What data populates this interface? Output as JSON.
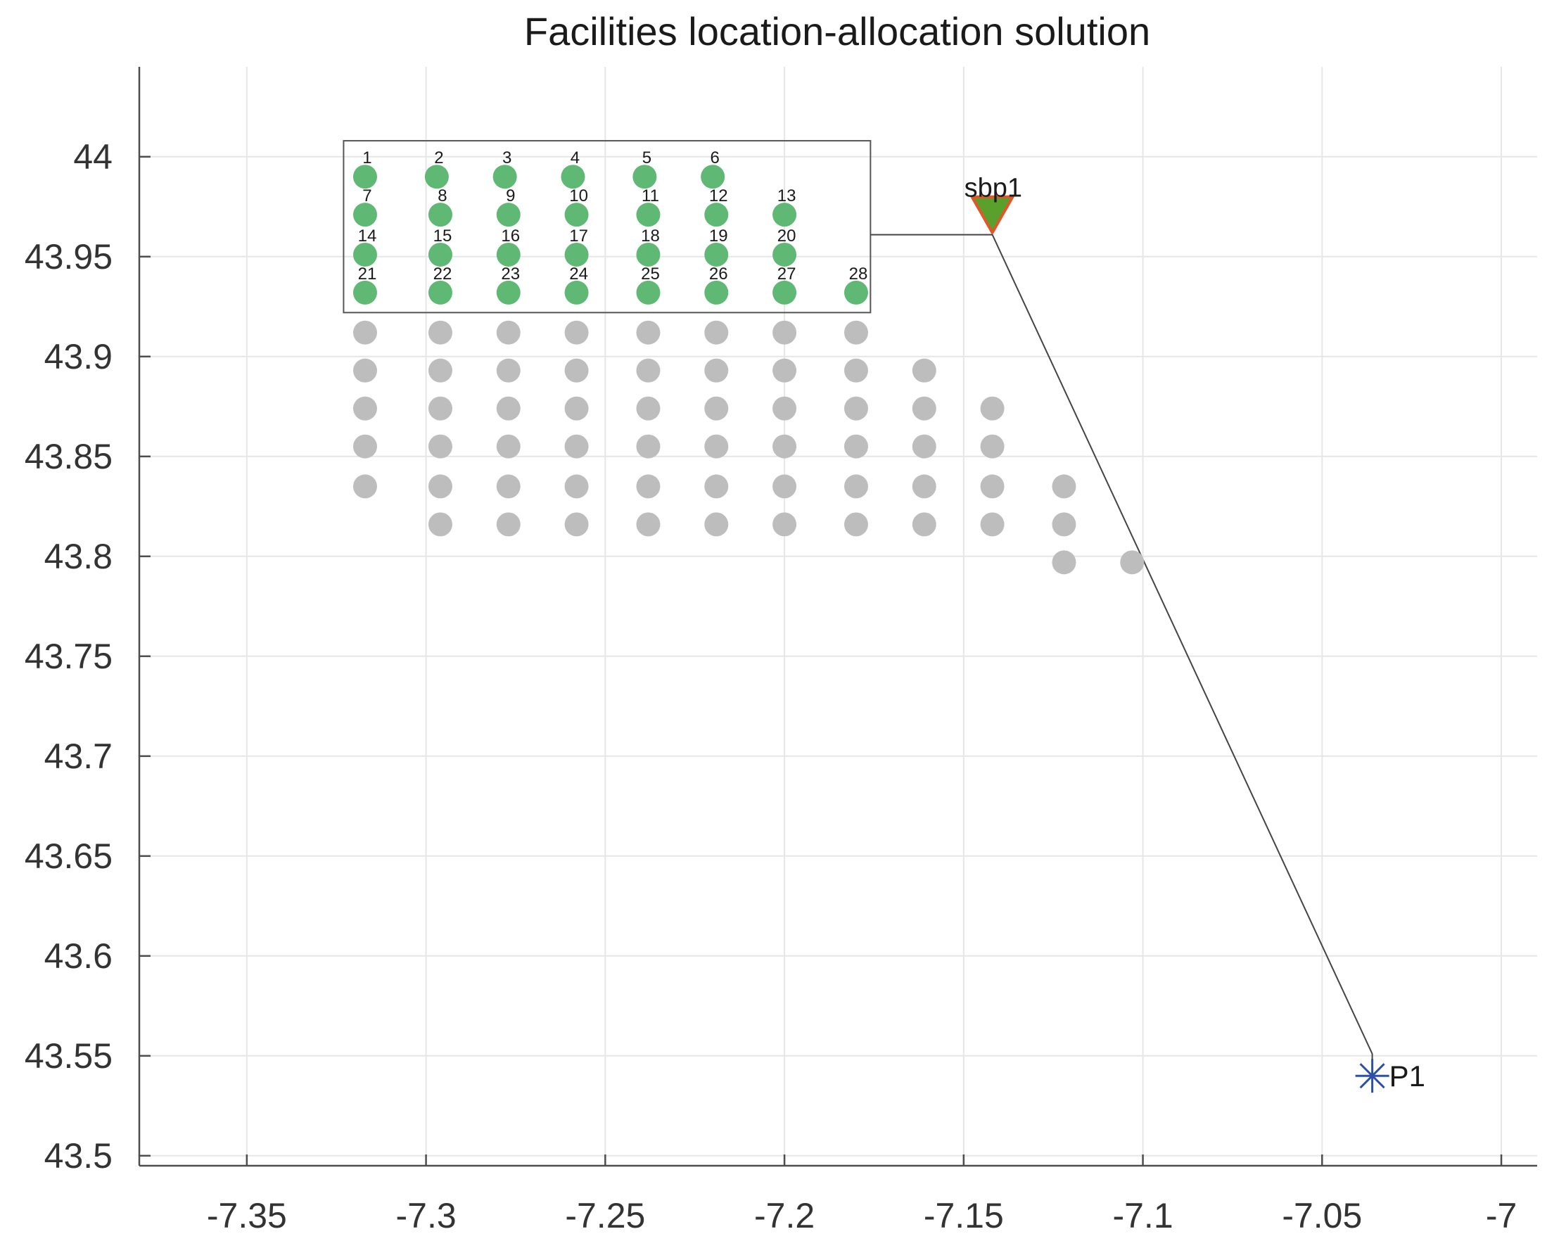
{
  "chart_data": {
    "type": "scatter",
    "title": "Facilities location-allocation solution",
    "xlabel": "",
    "ylabel": "",
    "xlim": [
      -7.38,
      -6.99
    ],
    "ylim": [
      43.495,
      44.045
    ],
    "grid": true,
    "x_ticks": [
      {
        "value": -7.35,
        "label": "-7.35"
      },
      {
        "value": -7.3,
        "label": "-7.3"
      },
      {
        "value": -7.25,
        "label": "-7.25"
      },
      {
        "value": -7.2,
        "label": "-7.2"
      },
      {
        "value": -7.15,
        "label": "-7.15"
      },
      {
        "value": -7.1,
        "label": "-7.1"
      },
      {
        "value": -7.05,
        "label": "-7.05"
      },
      {
        "value": -7.0,
        "label": "-7"
      }
    ],
    "y_ticks": [
      {
        "value": 43.5,
        "label": "43.5"
      },
      {
        "value": 43.55,
        "label": "43.55"
      },
      {
        "value": 43.6,
        "label": "43.6"
      },
      {
        "value": 43.65,
        "label": "43.65"
      },
      {
        "value": 43.7,
        "label": "43.7"
      },
      {
        "value": 43.75,
        "label": "43.75"
      },
      {
        "value": 43.8,
        "label": "43.8"
      },
      {
        "value": 43.85,
        "label": "43.85"
      },
      {
        "value": 43.9,
        "label": "43.9"
      },
      {
        "value": 43.95,
        "label": "43.95"
      },
      {
        "value": 44.0,
        "label": "44"
      }
    ],
    "colors": {
      "assigned": "#5fb874",
      "unassigned": "#bdbdbd",
      "facility_fill": "#5aa02c",
      "facility_edge": "#e2572a",
      "point_marker": "#2e4fa8",
      "line": "#444444",
      "grid": "#e6e6e6",
      "axis": "#4d4d4d"
    },
    "assigned_points": [
      {
        "label": "1",
        "x": -7.317,
        "y": 43.99
      },
      {
        "label": "2",
        "x": -7.297,
        "y": 43.99
      },
      {
        "label": "3",
        "x": -7.278,
        "y": 43.99
      },
      {
        "label": "4",
        "x": -7.259,
        "y": 43.99
      },
      {
        "label": "5",
        "x": -7.239,
        "y": 43.99
      },
      {
        "label": "6",
        "x": -7.22,
        "y": 43.99
      },
      {
        "label": "7",
        "x": -7.317,
        "y": 43.971
      },
      {
        "label": "8",
        "x": -7.296,
        "y": 43.971
      },
      {
        "label": "9",
        "x": -7.277,
        "y": 43.971
      },
      {
        "label": "10",
        "x": -7.258,
        "y": 43.971
      },
      {
        "label": "11",
        "x": -7.238,
        "y": 43.971
      },
      {
        "label": "12",
        "x": -7.219,
        "y": 43.971
      },
      {
        "label": "13",
        "x": -7.2,
        "y": 43.971
      },
      {
        "label": "14",
        "x": -7.317,
        "y": 43.951
      },
      {
        "label": "15",
        "x": -7.296,
        "y": 43.951
      },
      {
        "label": "16",
        "x": -7.277,
        "y": 43.951
      },
      {
        "label": "17",
        "x": -7.258,
        "y": 43.951
      },
      {
        "label": "18",
        "x": -7.238,
        "y": 43.951
      },
      {
        "label": "19",
        "x": -7.219,
        "y": 43.951
      },
      {
        "label": "20",
        "x": -7.2,
        "y": 43.951
      },
      {
        "label": "21",
        "x": -7.317,
        "y": 43.932
      },
      {
        "label": "22",
        "x": -7.296,
        "y": 43.932
      },
      {
        "label": "23",
        "x": -7.277,
        "y": 43.932
      },
      {
        "label": "24",
        "x": -7.258,
        "y": 43.932
      },
      {
        "label": "25",
        "x": -7.238,
        "y": 43.932
      },
      {
        "label": "26",
        "x": -7.219,
        "y": 43.932
      },
      {
        "label": "27",
        "x": -7.2,
        "y": 43.932
      },
      {
        "label": "28",
        "x": -7.18,
        "y": 43.932
      }
    ],
    "unassigned_points": [
      {
        "x": -7.317,
        "y": 43.912
      },
      {
        "x": -7.296,
        "y": 43.912
      },
      {
        "x": -7.277,
        "y": 43.912
      },
      {
        "x": -7.258,
        "y": 43.912
      },
      {
        "x": -7.238,
        "y": 43.912
      },
      {
        "x": -7.219,
        "y": 43.912
      },
      {
        "x": -7.2,
        "y": 43.912
      },
      {
        "x": -7.18,
        "y": 43.912
      },
      {
        "x": -7.317,
        "y": 43.893
      },
      {
        "x": -7.296,
        "y": 43.893
      },
      {
        "x": -7.277,
        "y": 43.893
      },
      {
        "x": -7.258,
        "y": 43.893
      },
      {
        "x": -7.238,
        "y": 43.893
      },
      {
        "x": -7.219,
        "y": 43.893
      },
      {
        "x": -7.2,
        "y": 43.893
      },
      {
        "x": -7.18,
        "y": 43.893
      },
      {
        "x": -7.161,
        "y": 43.893
      },
      {
        "x": -7.317,
        "y": 43.874
      },
      {
        "x": -7.296,
        "y": 43.874
      },
      {
        "x": -7.277,
        "y": 43.874
      },
      {
        "x": -7.258,
        "y": 43.874
      },
      {
        "x": -7.238,
        "y": 43.874
      },
      {
        "x": -7.219,
        "y": 43.874
      },
      {
        "x": -7.2,
        "y": 43.874
      },
      {
        "x": -7.18,
        "y": 43.874
      },
      {
        "x": -7.161,
        "y": 43.874
      },
      {
        "x": -7.142,
        "y": 43.874
      },
      {
        "x": -7.317,
        "y": 43.855
      },
      {
        "x": -7.296,
        "y": 43.855
      },
      {
        "x": -7.277,
        "y": 43.855
      },
      {
        "x": -7.258,
        "y": 43.855
      },
      {
        "x": -7.238,
        "y": 43.855
      },
      {
        "x": -7.219,
        "y": 43.855
      },
      {
        "x": -7.2,
        "y": 43.855
      },
      {
        "x": -7.18,
        "y": 43.855
      },
      {
        "x": -7.161,
        "y": 43.855
      },
      {
        "x": -7.142,
        "y": 43.855
      },
      {
        "x": -7.317,
        "y": 43.835
      },
      {
        "x": -7.296,
        "y": 43.835
      },
      {
        "x": -7.277,
        "y": 43.835
      },
      {
        "x": -7.258,
        "y": 43.835
      },
      {
        "x": -7.238,
        "y": 43.835
      },
      {
        "x": -7.219,
        "y": 43.835
      },
      {
        "x": -7.2,
        "y": 43.835
      },
      {
        "x": -7.18,
        "y": 43.835
      },
      {
        "x": -7.161,
        "y": 43.835
      },
      {
        "x": -7.142,
        "y": 43.835
      },
      {
        "x": -7.122,
        "y": 43.835
      },
      {
        "x": -7.296,
        "y": 43.816
      },
      {
        "x": -7.277,
        "y": 43.816
      },
      {
        "x": -7.258,
        "y": 43.816
      },
      {
        "x": -7.238,
        "y": 43.816
      },
      {
        "x": -7.219,
        "y": 43.816
      },
      {
        "x": -7.2,
        "y": 43.816
      },
      {
        "x": -7.18,
        "y": 43.816
      },
      {
        "x": -7.161,
        "y": 43.816
      },
      {
        "x": -7.142,
        "y": 43.816
      },
      {
        "x": -7.122,
        "y": 43.816
      },
      {
        "x": -7.122,
        "y": 43.797
      },
      {
        "x": -7.103,
        "y": 43.797
      }
    ],
    "facility": {
      "label": "sbp1",
      "x": -7.142,
      "y": 43.962
    },
    "demand_point": {
      "label": "P1",
      "x": -7.036,
      "y": 43.54
    },
    "assigned_box": {
      "x_min": -7.323,
      "x_max": -7.176,
      "y_min": 43.922,
      "y_max": 44.008
    },
    "connector": [
      {
        "x": -7.176,
        "y": 43.961
      },
      {
        "x": -7.142,
        "y": 43.961
      },
      {
        "x": -7.036,
        "y": 43.551
      },
      {
        "x": -7.036,
        "y": 43.54
      }
    ]
  }
}
